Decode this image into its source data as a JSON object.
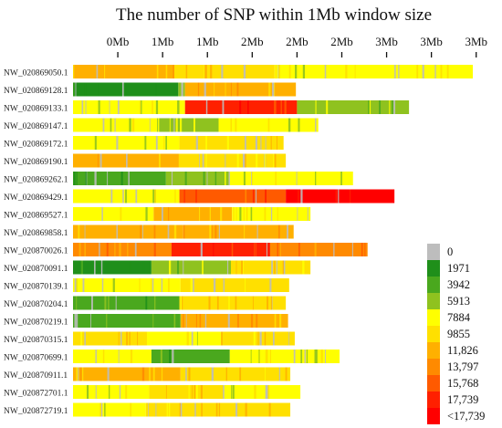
{
  "chart_data": {
    "type": "heatmap",
    "title": "The number of SNP within 1Mb window size",
    "x_tick_labels": [
      "0Mb",
      "1Mb",
      "1Mb",
      "2Mb",
      "2Mb",
      "2Mb",
      "3Mb",
      "3Mb",
      "3Mb"
    ],
    "x_tick_values": [
      0.4,
      0.8,
      1.2,
      1.6,
      2.0,
      2.4,
      2.8,
      3.2,
      3.6
    ],
    "x_range": [
      0,
      3.7
    ],
    "legend_labels": [
      "0",
      "1971",
      "3942",
      "5913",
      "7884",
      "9855",
      "11,826",
      "13,797",
      "15,768",
      "17,739",
      "<17,739"
    ],
    "legend_colors": [
      "#bdbdbd",
      "#1f8f1a",
      "#4aa81e",
      "#8fc21f",
      "#ffff00",
      "#ffe000",
      "#ffb000",
      "#ff8a00",
      "#ff5a00",
      "#ff2000",
      "#ff0000"
    ],
    "legend_placement": "right",
    "rows": [
      {
        "name": "NW_020869050.1",
        "length": 3.57,
        "segments": [
          {
            "end": 0.9,
            "level": 6
          },
          {
            "end": 1.8,
            "level": 5
          },
          {
            "end": 3.57,
            "level": 4
          }
        ]
      },
      {
        "name": "NW_020869128.1",
        "length": 1.99,
        "segments": [
          {
            "end": 0.94,
            "level": 1
          },
          {
            "end": 1.0,
            "level": 3
          },
          {
            "end": 1.99,
            "level": 6
          }
        ]
      },
      {
        "name": "NW_020869133.1",
        "length": 3.0,
        "segments": [
          {
            "end": 1.0,
            "level": 4
          },
          {
            "end": 2.0,
            "level": 9
          },
          {
            "end": 3.0,
            "level": 3
          }
        ]
      },
      {
        "name": "NW_020869147.1",
        "length": 2.19,
        "segments": [
          {
            "end": 0.75,
            "level": 4
          },
          {
            "end": 1.3,
            "level": 3
          },
          {
            "end": 2.19,
            "level": 4
          }
        ]
      },
      {
        "name": "NW_020869172.1",
        "length": 1.88,
        "segments": [
          {
            "end": 0.95,
            "level": 4
          },
          {
            "end": 1.88,
            "level": 5
          }
        ]
      },
      {
        "name": "NW_020869190.1",
        "length": 1.9,
        "segments": [
          {
            "end": 0.95,
            "level": 6
          },
          {
            "end": 1.9,
            "level": 5
          }
        ]
      },
      {
        "name": "NW_020869262.1",
        "length": 2.5,
        "segments": [
          {
            "end": 0.83,
            "level": 2
          },
          {
            "end": 1.4,
            "level": 3
          },
          {
            "end": 2.5,
            "level": 4
          }
        ]
      },
      {
        "name": "NW_020869429.1",
        "length": 2.87,
        "segments": [
          {
            "end": 0.95,
            "level": 4
          },
          {
            "end": 1.9,
            "level": 8
          },
          {
            "end": 2.87,
            "level": 10
          }
        ]
      },
      {
        "name": "NW_020869527.1",
        "length": 2.12,
        "segments": [
          {
            "end": 0.72,
            "level": 4
          },
          {
            "end": 1.42,
            "level": 6
          },
          {
            "end": 2.12,
            "level": 4
          }
        ]
      },
      {
        "name": "NW_020869858.1",
        "length": 1.97,
        "segments": [
          {
            "end": 0.98,
            "level": 6
          },
          {
            "end": 1.97,
            "level": 6
          }
        ]
      },
      {
        "name": "NW_020870026.1",
        "length": 2.63,
        "segments": [
          {
            "end": 0.88,
            "level": 7
          },
          {
            "end": 1.76,
            "level": 9
          },
          {
            "end": 2.63,
            "level": 7
          }
        ]
      },
      {
        "name": "NW_020870091.1",
        "length": 2.12,
        "segments": [
          {
            "end": 0.7,
            "level": 1
          },
          {
            "end": 1.41,
            "level": 3
          },
          {
            "end": 2.12,
            "level": 5
          }
        ]
      },
      {
        "name": "NW_020870139.1",
        "length": 1.93,
        "segments": [
          {
            "end": 0.96,
            "level": 4
          },
          {
            "end": 1.93,
            "level": 5
          }
        ]
      },
      {
        "name": "NW_020870204.1",
        "length": 1.9,
        "segments": [
          {
            "end": 0.95,
            "level": 2
          },
          {
            "end": 1.9,
            "level": 5
          }
        ]
      },
      {
        "name": "NW_020870219.1",
        "length": 1.92,
        "segments": [
          {
            "end": 0.96,
            "level": 2
          },
          {
            "end": 1.92,
            "level": 6
          }
        ]
      },
      {
        "name": "NW_020870315.1",
        "length": 1.98,
        "segments": [
          {
            "end": 0.66,
            "level": 5
          },
          {
            "end": 1.32,
            "level": 4
          },
          {
            "end": 1.98,
            "level": 5
          }
        ]
      },
      {
        "name": "NW_020870699.1",
        "length": 2.38,
        "segments": [
          {
            "end": 0.7,
            "level": 4
          },
          {
            "end": 1.4,
            "level": 2
          },
          {
            "end": 2.38,
            "level": 4
          }
        ]
      },
      {
        "name": "NW_020870911.1",
        "length": 1.94,
        "segments": [
          {
            "end": 0.96,
            "level": 6
          },
          {
            "end": 1.94,
            "level": 5
          }
        ]
      },
      {
        "name": "NW_020872701.1",
        "length": 2.03,
        "segments": [
          {
            "end": 0.68,
            "level": 4
          },
          {
            "end": 1.35,
            "level": 5
          },
          {
            "end": 2.03,
            "level": 4
          }
        ]
      },
      {
        "name": "NW_020872719.1",
        "length": 1.94,
        "segments": [
          {
            "end": 0.65,
            "level": 4
          },
          {
            "end": 1.3,
            "level": 5
          },
          {
            "end": 1.94,
            "level": 5
          }
        ]
      }
    ]
  }
}
